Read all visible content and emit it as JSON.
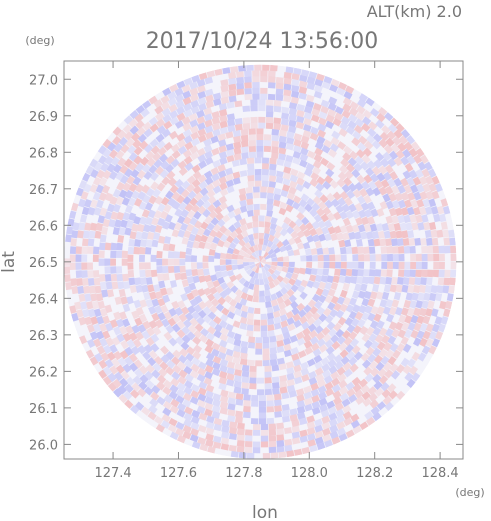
{
  "header": {
    "altitude": "ALT(km)  2.0",
    "timestamp": "2017/10/24 13:56:00"
  },
  "chart_data": {
    "type": "heatmap",
    "title": "2017/10/24 13:56:00",
    "subtitle": "ALT(km)  2.0",
    "xlabel": "lon",
    "ylabel": "lat",
    "x_unit": "(deg)",
    "y_unit": "(deg)",
    "xlim": [
      127.25,
      128.47
    ],
    "ylim": [
      25.96,
      27.05
    ],
    "x_ticks": [
      127.4,
      127.6,
      127.8,
      128.0,
      128.2,
      128.4
    ],
    "x_tick_labels": [
      "127.4",
      "127.6",
      "127.8",
      "128.0",
      "128.2",
      "128.4"
    ],
    "y_ticks": [
      26.0,
      26.1,
      26.2,
      26.3,
      26.4,
      26.5,
      26.6,
      26.7,
      26.8,
      26.9,
      27.0
    ],
    "y_tick_labels": [
      "26.0",
      "26.1",
      "26.2",
      "26.3",
      "26.4",
      "26.5",
      "26.6",
      "26.7",
      "26.8",
      "26.9",
      "27.0"
    ],
    "radar_center": {
      "lon": 127.85,
      "lat": 26.5
    },
    "radar_range_deg": {
      "lon": 0.6,
      "lat": 0.54
    },
    "colors": {
      "positive": "#f07070",
      "negative": "#7070f0",
      "frame": "#888888"
    }
  }
}
